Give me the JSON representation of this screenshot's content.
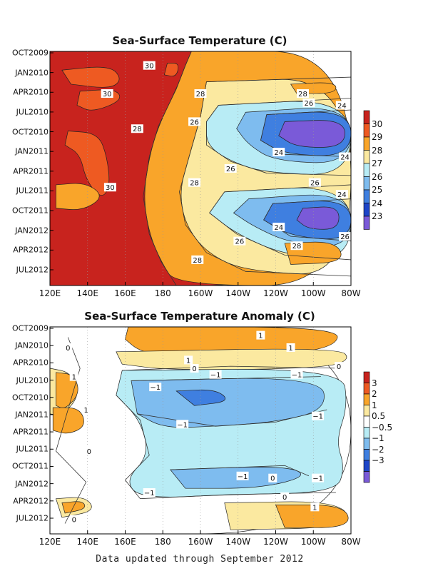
{
  "footer": "Data updated through September 2012",
  "chart_data": [
    {
      "type": "heatmap",
      "title": "Sea-Surface Temperature (C)",
      "xlabel": "",
      "ylabel": "",
      "x_ticks": [
        "120E",
        "140E",
        "160E",
        "180",
        "160W",
        "140W",
        "120W",
        "100W",
        "80W"
      ],
      "x_range_deg_east": [
        120,
        280
      ],
      "y_ticks": [
        "OCT2009",
        "JAN2010",
        "APR2010",
        "JUL2010",
        "OCT2010",
        "JAN2011",
        "APR2011",
        "JUL2011",
        "OCT2011",
        "JAN2012",
        "APR2012",
        "JUL2012"
      ],
      "colorbar": {
        "labels": [
          "30",
          "29",
          "28",
          "27",
          "26",
          "25",
          "24",
          "23"
        ],
        "colors": [
          "#c8231e",
          "#ee5a22",
          "#f9a52a",
          "#fbe9a0",
          "#b8ecf5",
          "#7ebcef",
          "#3f7fe0",
          "#1d45c8",
          "#7a5ad8"
        ]
      },
      "contour_labels": [
        "30",
        "30",
        "30",
        "28",
        "28",
        "28",
        "28",
        "28",
        "28",
        "26",
        "26",
        "26",
        "26",
        "26",
        "26",
        "24",
        "24",
        "24",
        "24",
        "24"
      ],
      "warm_pool_west_C": 29.5,
      "cold_tongue_east_C": 23
    },
    {
      "type": "heatmap",
      "title": "Sea-Surface Temperature Anomaly (C)",
      "xlabel": "",
      "ylabel": "",
      "x_ticks": [
        "120E",
        "140E",
        "160E",
        "180",
        "160W",
        "140W",
        "120W",
        "100W",
        "80W"
      ],
      "x_range_deg_east": [
        120,
        280
      ],
      "y_ticks": [
        "OCT2009",
        "JAN2010",
        "APR2010",
        "JUL2010",
        "OCT2010",
        "JAN2011",
        "APR2011",
        "JUL2011",
        "OCT2011",
        "JAN2012",
        "APR2012",
        "JUL2012"
      ],
      "colorbar": {
        "labels": [
          "3",
          "2",
          "1",
          "0.5",
          "−0.5",
          "−1",
          "−2",
          "−3"
        ],
        "colors": [
          "#c8231e",
          "#ee5a22",
          "#f9a52a",
          "#fbe9a0",
          "#ffffff",
          "#b8ecf5",
          "#7ebcef",
          "#3f7fe0",
          "#1d45c8",
          "#7a5ad8"
        ]
      },
      "contour_labels": [
        "1",
        "1",
        "1",
        "1",
        "1",
        "1",
        "0",
        "0",
        "0",
        "0",
        "0",
        "0",
        "0",
        "−1",
        "−1",
        "−1",
        "−1",
        "−1",
        "−1",
        "−1",
        "−1"
      ],
      "period_anomaly_C": {
        "late2009_early2010": 1,
        "mid2010_mid2011": -1,
        "late2011_early2012": -1,
        "mid2012": 1
      }
    }
  ]
}
